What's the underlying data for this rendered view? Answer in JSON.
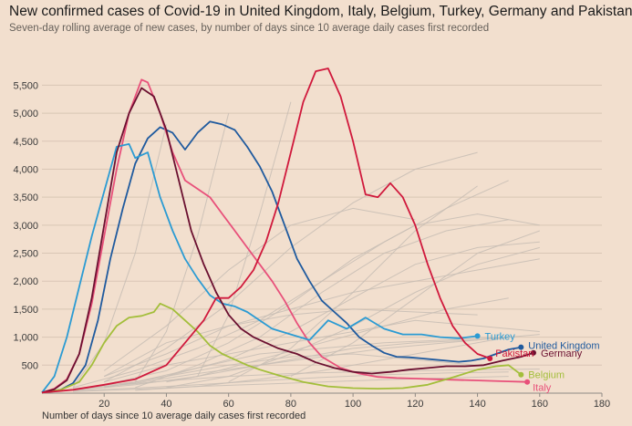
{
  "chart_data": {
    "type": "line",
    "title": "New confirmed cases of Covid-19 in United Kingdom, Italy, Belgium, Turkey, Germany and Pakistan",
    "subtitle": "Seven-day rolling average of new cases, by number of days since 10 average daily cases first recorded",
    "xlabel": "Number of days since 10 average daily cases first recorded",
    "ylabel": "",
    "xlim": [
      0,
      180
    ],
    "ylim": [
      0,
      5800
    ],
    "x_ticks": [
      20,
      40,
      60,
      80,
      100,
      120,
      140,
      160,
      180
    ],
    "y_ticks": [
      500,
      1000,
      1500,
      2000,
      2500,
      3000,
      3500,
      4000,
      4500,
      5000,
      5500
    ],
    "y_tick_labels": [
      "500",
      "1,000",
      "1,500",
      "2,000",
      "2,500",
      "3,000",
      "3,500",
      "4,000",
      "4,500",
      "5,000",
      "5,500"
    ],
    "grid": "horizontal",
    "series": [
      {
        "name": "United Kingdom",
        "color": "#1f5a9e",
        "label_color": "#1f5a9e",
        "x": [
          0,
          6,
          10,
          14,
          18,
          22,
          26,
          30,
          34,
          38,
          42,
          46,
          50,
          54,
          58,
          62,
          66,
          70,
          74,
          78,
          82,
          86,
          90,
          94,
          98,
          102,
          106,
          110,
          114,
          118,
          122,
          126,
          130,
          134,
          138,
          142,
          146,
          150,
          154
        ],
        "values": [
          10,
          60,
          180,
          500,
          1300,
          2400,
          3300,
          4100,
          4550,
          4750,
          4650,
          4350,
          4650,
          4850,
          4800,
          4700,
          4400,
          4050,
          3600,
          3000,
          2400,
          2000,
          1650,
          1450,
          1250,
          1000,
          850,
          720,
          650,
          640,
          620,
          600,
          580,
          560,
          580,
          620,
          700,
          780,
          820
        ]
      },
      {
        "name": "Italy",
        "color": "#e8507a",
        "label_color": "#e8507a",
        "x": [
          0,
          4,
          8,
          12,
          16,
          20,
          24,
          28,
          32,
          34,
          38,
          42,
          46,
          50,
          54,
          58,
          62,
          66,
          70,
          74,
          78,
          82,
          86,
          90,
          96,
          102,
          108,
          114,
          120,
          126,
          132,
          138,
          144,
          150,
          156
        ],
        "values": [
          10,
          80,
          250,
          700,
          1600,
          2800,
          4000,
          5000,
          5600,
          5550,
          5000,
          4300,
          3800,
          3650,
          3500,
          3200,
          2900,
          2600,
          2300,
          2000,
          1650,
          1250,
          900,
          650,
          450,
          350,
          290,
          270,
          260,
          250,
          240,
          230,
          220,
          210,
          200
        ]
      },
      {
        "name": "Belgium",
        "color": "#a3be3a",
        "label_color": "#a3be3a",
        "x": [
          0,
          6,
          12,
          16,
          20,
          24,
          28,
          32,
          36,
          38,
          42,
          46,
          50,
          54,
          58,
          62,
          66,
          70,
          76,
          84,
          92,
          100,
          108,
          116,
          124,
          132,
          140,
          146,
          150,
          154
        ],
        "values": [
          10,
          60,
          200,
          500,
          900,
          1200,
          1350,
          1380,
          1450,
          1600,
          1500,
          1300,
          1100,
          850,
          700,
          600,
          500,
          420,
          320,
          200,
          120,
          90,
          80,
          90,
          150,
          280,
          420,
          480,
          500,
          330
        ]
      },
      {
        "name": "Turkey",
        "color": "#2b9bd3",
        "label_color": "#2b9bd3",
        "x": [
          0,
          4,
          8,
          12,
          16,
          20,
          24,
          28,
          30,
          34,
          38,
          42,
          46,
          50,
          54,
          58,
          62,
          66,
          70,
          74,
          80,
          86,
          92,
          98,
          104,
          110,
          116,
          122,
          128,
          134,
          140
        ],
        "values": [
          10,
          300,
          1000,
          1900,
          2800,
          3600,
          4400,
          4450,
          4200,
          4300,
          3500,
          2900,
          2400,
          2050,
          1750,
          1600,
          1550,
          1450,
          1300,
          1150,
          1050,
          950,
          1300,
          1150,
          1350,
          1150,
          1050,
          1050,
          1000,
          980,
          1020
        ]
      },
      {
        "name": "Germany",
        "color": "#6b1030",
        "label_color": "#6b1030",
        "x": [
          0,
          4,
          8,
          12,
          16,
          20,
          24,
          28,
          32,
          36,
          40,
          44,
          48,
          52,
          56,
          60,
          64,
          68,
          72,
          76,
          82,
          88,
          94,
          100,
          106,
          112,
          118,
          124,
          130,
          136,
          142,
          148,
          154,
          158
        ],
        "values": [
          10,
          70,
          230,
          700,
          1700,
          3000,
          4300,
          5000,
          5450,
          5300,
          4700,
          3800,
          2900,
          2300,
          1800,
          1400,
          1150,
          1000,
          900,
          800,
          700,
          550,
          450,
          380,
          350,
          380,
          420,
          450,
          480,
          480,
          500,
          580,
          650,
          720
        ]
      },
      {
        "name": "Pakistan",
        "color": "#d0193c",
        "label_color": "#d0193c",
        "x": [
          0,
          10,
          20,
          30,
          40,
          46,
          52,
          56,
          60,
          64,
          68,
          72,
          76,
          80,
          84,
          88,
          92,
          96,
          100,
          104,
          108,
          112,
          116,
          120,
          124,
          128,
          132,
          136,
          140,
          144
        ],
        "values": [
          10,
          60,
          150,
          250,
          500,
          900,
          1300,
          1700,
          1700,
          1900,
          2200,
          2700,
          3400,
          4300,
          5200,
          5750,
          5800,
          5300,
          4500,
          3550,
          3500,
          3750,
          3500,
          3000,
          2300,
          1700,
          1200,
          900,
          700,
          620
        ]
      }
    ],
    "background_series": [
      {
        "x": [
          20,
          40,
          60,
          80,
          100,
          120,
          140,
          160
        ],
        "values": [
          300,
          700,
          1200,
          1500,
          1800,
          2000,
          2200,
          2400
        ]
      },
      {
        "x": [
          20,
          40,
          60,
          80,
          100,
          120,
          140,
          160
        ],
        "values": [
          150,
          400,
          900,
          1600,
          2400,
          3000,
          3200,
          3000
        ]
      },
      {
        "x": [
          20,
          40,
          60,
          80,
          100,
          120,
          140,
          160
        ],
        "values": [
          100,
          300,
          600,
          1100,
          1700,
          2300,
          2600,
          2700
        ]
      },
      {
        "x": [
          20,
          40,
          60,
          80,
          100,
          120,
          140,
          160
        ],
        "values": [
          200,
          500,
          700,
          900,
          1100,
          1300,
          1200,
          1100
        ]
      },
      {
        "x": [
          10,
          30,
          50,
          70,
          90,
          110,
          130,
          150
        ],
        "values": [
          100,
          400,
          800,
          1300,
          2000,
          2700,
          3300,
          3800
        ]
      },
      {
        "x": [
          10,
          30,
          50,
          70,
          90,
          110,
          130,
          150
        ],
        "values": [
          50,
          150,
          300,
          600,
          900,
          1200,
          1500,
          1700
        ]
      },
      {
        "x": [
          10,
          30,
          50,
          70,
          90,
          110,
          130,
          150
        ],
        "values": [
          80,
          200,
          450,
          700,
          800,
          900,
          950,
          1000
        ]
      },
      {
        "x": [
          20,
          40,
          60,
          80,
          100,
          120,
          140
        ],
        "values": [
          200,
          800,
          1600,
          2600,
          3400,
          4000,
          4300
        ]
      },
      {
        "x": [
          20,
          40,
          60,
          80,
          100,
          120,
          140
        ],
        "values": [
          100,
          300,
          500,
          650,
          700,
          600,
          500
        ]
      },
      {
        "x": [
          20,
          40,
          60,
          80,
          100,
          120,
          140
        ],
        "values": [
          300,
          900,
          1200,
          1400,
          1500,
          1450,
          1400
        ]
      },
      {
        "x": [
          30,
          50,
          70,
          90,
          110,
          130,
          150
        ],
        "values": [
          100,
          500,
          1000,
          1800,
          2500,
          2900,
          3100
        ]
      },
      {
        "x": [
          30,
          50,
          70,
          90,
          110,
          130,
          150
        ],
        "values": [
          50,
          120,
          250,
          400,
          600,
          800,
          1000
        ]
      },
      {
        "x": [
          10,
          30,
          50,
          70,
          90,
          110,
          130,
          150,
          160
        ],
        "values": [
          60,
          180,
          350,
          500,
          650,
          800,
          900,
          1000,
          1050
        ]
      },
      {
        "x": [
          20,
          40,
          60,
          80,
          100,
          120
        ],
        "values": [
          400,
          1200,
          2200,
          3000,
          3300,
          3100
        ]
      },
      {
        "x": [
          40,
          60,
          80,
          100,
          120,
          140,
          160
        ],
        "values": [
          100,
          300,
          700,
          1200,
          1800,
          2300,
          2600
        ]
      },
      {
        "x": [
          40,
          60,
          80,
          100,
          120,
          140
        ],
        "values": [
          200,
          400,
          600,
          800,
          900,
          950
        ]
      },
      {
        "x": [
          10,
          30,
          50,
          70,
          90,
          110,
          130,
          150
        ],
        "values": [
          40,
          90,
          150,
          220,
          280,
          330,
          360,
          380
        ]
      },
      {
        "x": [
          10,
          30,
          50,
          70,
          90,
          110,
          130,
          150
        ],
        "values": [
          30,
          70,
          120,
          160,
          200,
          240,
          270,
          300
        ]
      },
      {
        "x": [
          20,
          40,
          60,
          80,
          100,
          120,
          140,
          160
        ],
        "values": [
          120,
          220,
          300,
          350,
          380,
          400,
          420,
          430
        ]
      },
      {
        "x": [
          60,
          80,
          100,
          120,
          140
        ],
        "values": [
          200,
          800,
          1800,
          2900,
          3700
        ]
      },
      {
        "x": [
          80,
          100,
          120,
          140,
          160
        ],
        "values": [
          300,
          900,
          1700,
          2500,
          2900
        ]
      },
      {
        "x": [
          10,
          20,
          30,
          40
        ],
        "values": [
          100,
          900,
          2500,
          4800
        ]
      },
      {
        "x": [
          30,
          40,
          50,
          60
        ],
        "values": [
          200,
          1100,
          2800,
          5000
        ]
      },
      {
        "x": [
          50,
          60,
          70,
          80
        ],
        "values": [
          300,
          1400,
          3200,
          5200
        ]
      }
    ]
  }
}
